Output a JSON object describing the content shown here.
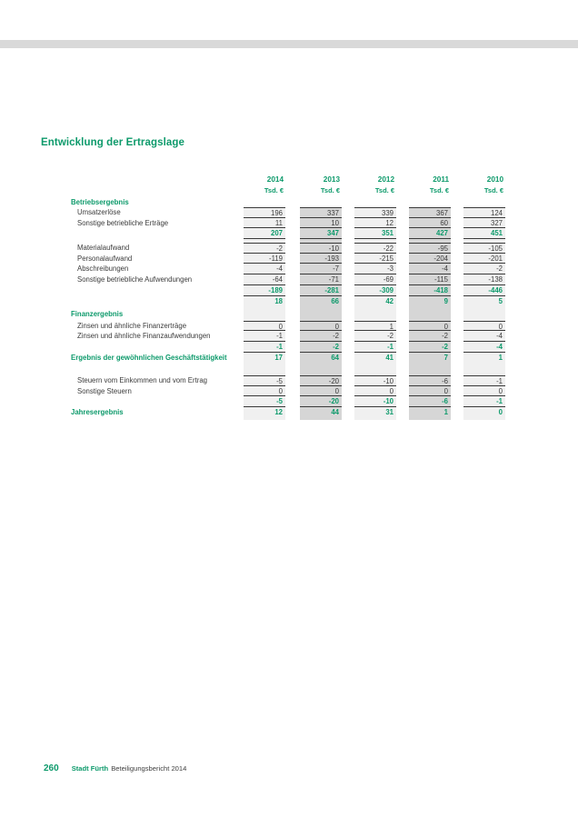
{
  "page": {
    "title": "Entwicklung der Ertragslage",
    "footer": {
      "page_number": "260",
      "publisher": "Stadt Fürth",
      "document": "Beteiligungsbericht 2014"
    }
  },
  "colors": {
    "accent_green": "#0D9A6B",
    "band_light": "#F0F0F0",
    "band_dark": "#D6D6D6",
    "top_bar_gray": "#D9D9D9",
    "text_dark": "#3B3B3B"
  },
  "table": {
    "years": [
      "2014",
      "2013",
      "2012",
      "2011",
      "2010"
    ],
    "unit_label": "Tsd. €",
    "rows": [
      {
        "type": "section",
        "label": "Betriebsergebnis"
      },
      {
        "type": "item",
        "first": true,
        "label": "Umsatzerlöse",
        "values": [
          "196",
          "337",
          "339",
          "367",
          "124"
        ]
      },
      {
        "type": "item",
        "label": "Sonstige betriebliche Erträge",
        "values": [
          "11",
          "10",
          "12",
          "60",
          "327"
        ]
      },
      {
        "type": "subtotal",
        "values": [
          "207",
          "347",
          "351",
          "427",
          "451"
        ]
      },
      {
        "type": "gap"
      },
      {
        "type": "item",
        "first": true,
        "label": "Materialaufwand",
        "values": [
          "-2",
          "-10",
          "-22",
          "-95",
          "-105"
        ]
      },
      {
        "type": "item",
        "label": "Personalaufwand",
        "values": [
          "-119",
          "-193",
          "-215",
          "-204",
          "-201"
        ]
      },
      {
        "type": "item",
        "label": "Abschreibungen",
        "values": [
          "-4",
          "-7",
          "-3",
          "-4",
          "-2"
        ]
      },
      {
        "type": "item",
        "label": "Sonstige betriebliche Aufwendungen",
        "values": [
          "-64",
          "-71",
          "-69",
          "-115",
          "-138"
        ]
      },
      {
        "type": "subtotal",
        "values": [
          "-189",
          "-281",
          "-309",
          "-418",
          "-446"
        ]
      },
      {
        "type": "total",
        "values": [
          "18",
          "66",
          "42",
          "9",
          "5"
        ]
      },
      {
        "type": "section-gap",
        "label": "Finanzergebnis"
      },
      {
        "type": "item",
        "first": true,
        "label": "Zinsen und ähnliche Finanzerträge",
        "values": [
          "0",
          "0",
          "1",
          "0",
          "0"
        ]
      },
      {
        "type": "item",
        "label": "Zinsen und ähnliche Finanzaufwendungen",
        "values": [
          "-1",
          "-2",
          "-2",
          "-2",
          "-4"
        ]
      },
      {
        "type": "subtotal",
        "values": [
          "-1",
          "-2",
          "-1",
          "-2",
          "-4"
        ]
      },
      {
        "type": "result",
        "label": "Ergebnis der gewöhnlichen Geschäftstätigkeit",
        "values": [
          "17",
          "64",
          "41",
          "7",
          "1"
        ]
      },
      {
        "type": "gap-lg"
      },
      {
        "type": "item",
        "first": true,
        "label": "Steuern vom Einkommen und vom Ertrag",
        "values": [
          "-5",
          "-20",
          "-10",
          "-6",
          "-1"
        ]
      },
      {
        "type": "item",
        "label": "Sonstige Steuern",
        "values": [
          "0",
          "0",
          "0",
          "0",
          "0"
        ]
      },
      {
        "type": "subtotal",
        "values": [
          "-5",
          "-20",
          "-10",
          "-6",
          "-1"
        ]
      },
      {
        "type": "result",
        "label": "Jahresergebnis",
        "values": [
          "12",
          "44",
          "31",
          "1",
          "0"
        ]
      }
    ]
  }
}
